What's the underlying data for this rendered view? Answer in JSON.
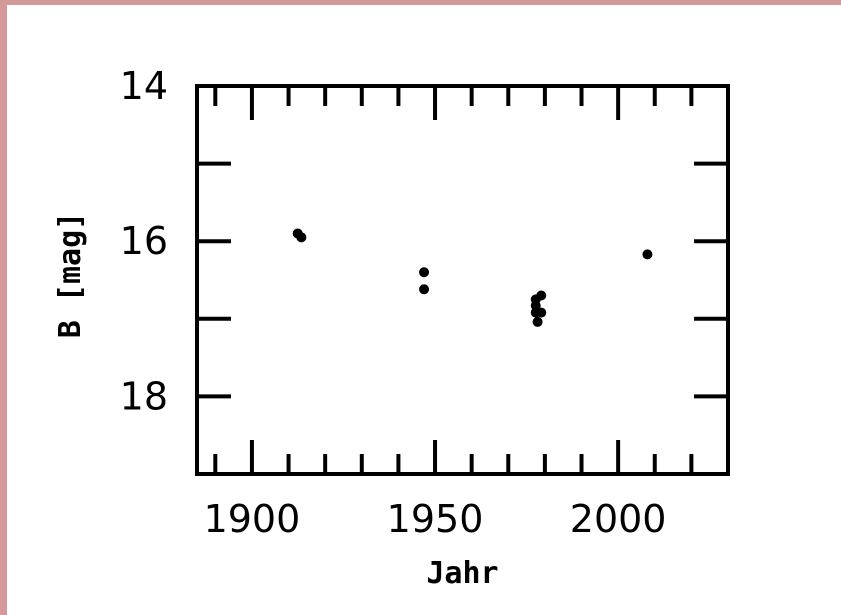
{
  "chart_data": {
    "type": "scatter",
    "title": "",
    "xlabel": "Jahr",
    "ylabel": "B [mag]",
    "xlim": [
      1885,
      2030
    ],
    "ylim": [
      19,
      14
    ],
    "y_inverted": true,
    "x_ticks": [
      1900,
      1950,
      2000
    ],
    "x_tick_labels": [
      "1900",
      "1950",
      "2000"
    ],
    "y_ticks": [
      14,
      16,
      18
    ],
    "y_tick_labels": [
      "14",
      "16",
      "18"
    ],
    "grid": false,
    "legend": "none",
    "series": [
      {
        "points": [
          {
            "x": 1912.5,
            "y": 15.9
          },
          {
            "x": 1913.5,
            "y": 15.95
          },
          {
            "x": 1947,
            "y": 16.4
          },
          {
            "x": 1947,
            "y": 16.62
          },
          {
            "x": 1977.5,
            "y": 16.75
          },
          {
            "x": 1977.5,
            "y": 16.83
          },
          {
            "x": 1977.5,
            "y": 16.92
          },
          {
            "x": 1978,
            "y": 17.04
          },
          {
            "x": 1979,
            "y": 16.7
          },
          {
            "x": 1979,
            "y": 16.92
          },
          {
            "x": 2008,
            "y": 16.17
          }
        ]
      }
    ]
  }
}
